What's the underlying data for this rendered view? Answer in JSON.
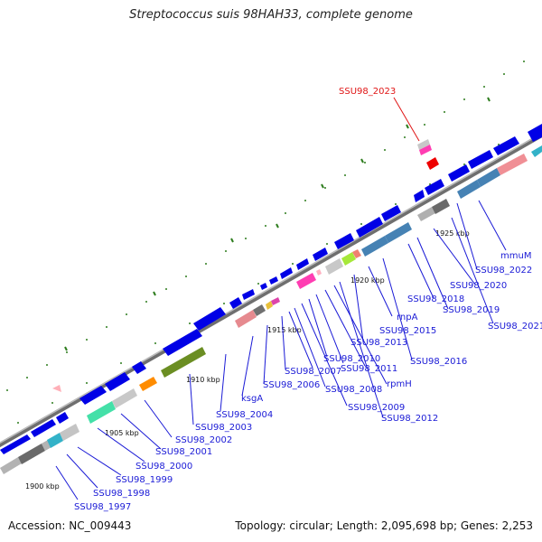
{
  "title": "Streptococcus suis 98HAH33, complete genome",
  "footer": {
    "accession": "Accession: NC_009443",
    "summary": "Topology: circular; Length: 2,095,698 bp; Genes: 2,253"
  },
  "colors": {
    "backbone": "#808080",
    "cds": "#0000e6",
    "label_blue": "#1a1ad6",
    "label_red": "#e01515",
    "tick": "#2e7d1e"
  },
  "kbp_markers": [
    "1900 kbp",
    "1905 kbp",
    "1910 kbp",
    "1915 kbp",
    "1920 kbp",
    "1925 kbp"
  ],
  "gene_labels": [
    "SSU98_1997",
    "SSU98_1998",
    "SSU98_1999",
    "SSU98_2000",
    "SSU98_2001",
    "SSU98_2002",
    "SSU98_2003",
    "SSU98_2004",
    "ksgA",
    "SSU98_2006",
    "SSU98_2007",
    "SSU98_2008",
    "SSU98_2009",
    "SSU98_2010",
    "SSU98_2011",
    "rpmH",
    "SSU98_2012",
    "SSU98_2013",
    "SSU98_2015",
    "rnpA",
    "SSU98_2016",
    "SSU98_2018",
    "SSU98_2019",
    "SSU98_2020",
    "SSU98_2021",
    "SSU98_2022",
    "mmuM"
  ],
  "highlight_label": "SSU98_2023"
}
